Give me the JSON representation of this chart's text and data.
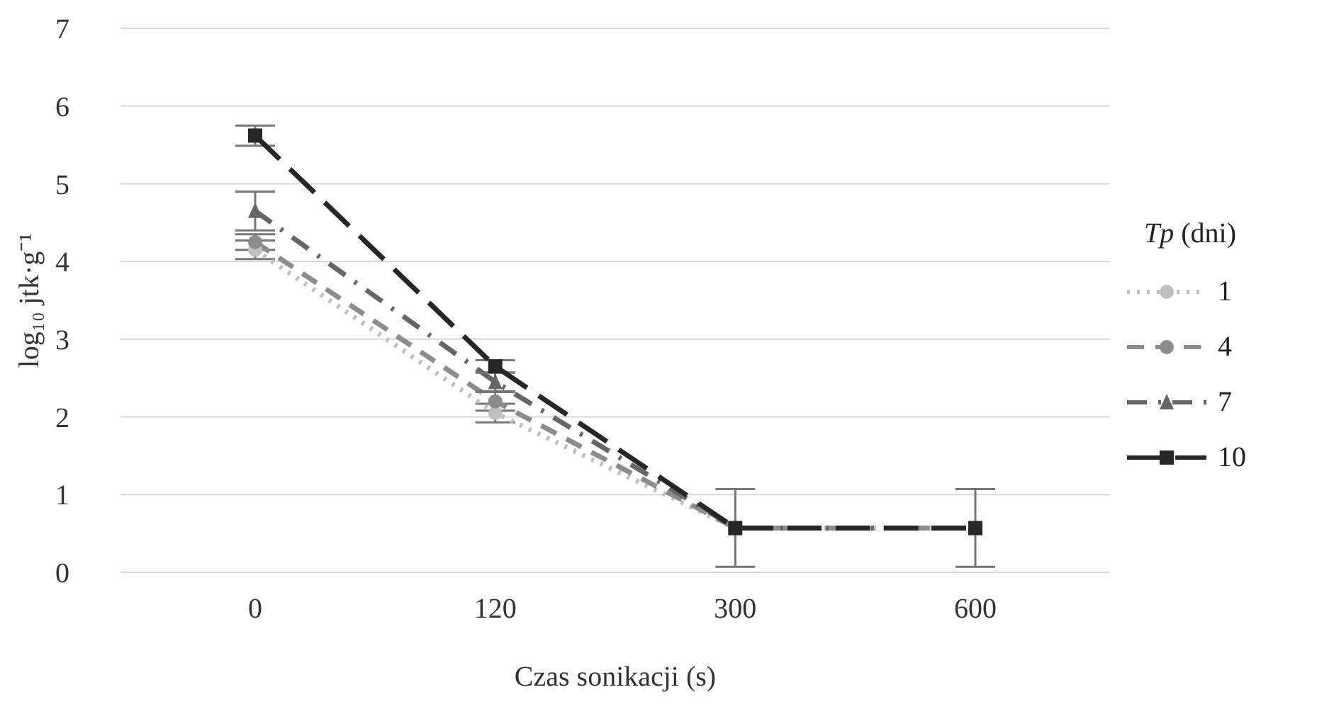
{
  "chart_data": {
    "type": "line",
    "xlabel": "Czas sonikacji (s)",
    "ylabel": "log₁₀ jtk·g⁻¹",
    "legend_title": "Tp (dni)",
    "categories": [
      "0",
      "120",
      "300",
      "600"
    ],
    "ylim": [
      0,
      7
    ],
    "yticks": [
      0,
      1,
      2,
      3,
      4,
      5,
      6,
      7
    ],
    "grid": "y",
    "legend": "right",
    "series": [
      {
        "name": "1",
        "color": "#c0c0c0",
        "line_style": "dotted",
        "marker": "circle",
        "values": [
          4.15,
          2.05,
          0.57,
          0.57
        ],
        "errors": [
          0.12,
          0.12,
          null,
          null
        ]
      },
      {
        "name": "4",
        "color": "#8c8c8c",
        "line_style": "dashed",
        "marker": "circle",
        "values": [
          4.25,
          2.2,
          0.57,
          0.57
        ],
        "errors": [
          0.1,
          0.12,
          null,
          null
        ]
      },
      {
        "name": "7",
        "color": "#666666",
        "line_style": "dashed",
        "marker": "triangle",
        "values": [
          4.65,
          2.45,
          0.57,
          0.57
        ],
        "errors": [
          0.25,
          0.12,
          null,
          null
        ]
      },
      {
        "name": "10",
        "color": "#262626",
        "line_style": "dashed",
        "marker": "square",
        "values": [
          5.62,
          2.65,
          0.57,
          0.57
        ],
        "errors": [
          0.13,
          0.08,
          0.5,
          0.5
        ]
      }
    ]
  }
}
